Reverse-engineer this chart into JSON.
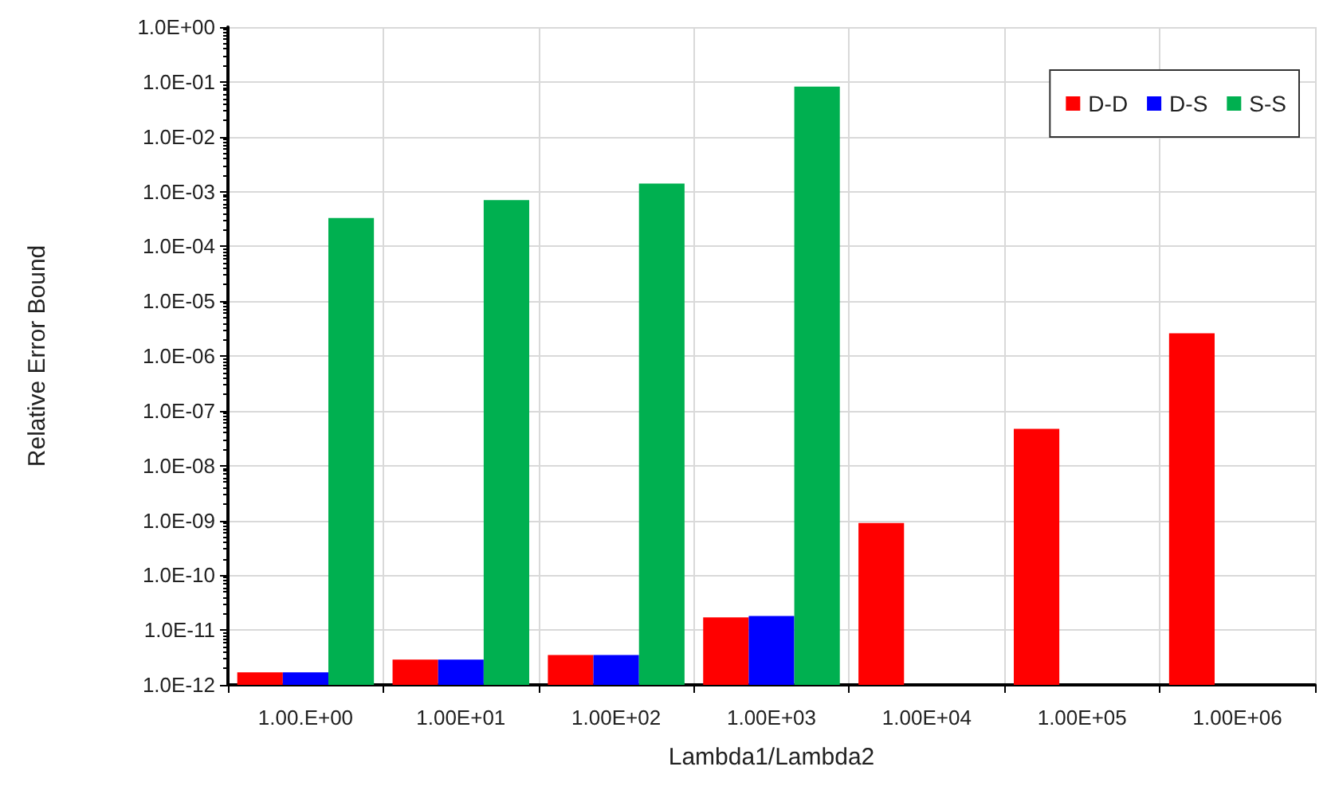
{
  "chart_data": {
    "type": "bar",
    "xlabel": "Lambda1/Lambda2",
    "ylabel": "Relative Error Bound",
    "categories": [
      "1.00.E+00",
      "1.00E+01",
      "1.00E+02",
      "1.00E+03",
      "1.00E+04",
      "1.00E+05",
      "1.00E+06"
    ],
    "series": [
      {
        "name": "D-D",
        "color": "#ff0000",
        "values": [
          1.7e-12,
          2.9e-12,
          3.5e-12,
          1.7e-11,
          9e-10,
          4.7e-08,
          2.6e-06
        ]
      },
      {
        "name": "D-S",
        "color": "#0000ff",
        "values": [
          1.7e-12,
          2.9e-12,
          3.5e-12,
          1.8e-11,
          null,
          null,
          null
        ]
      },
      {
        "name": "S-S",
        "color": "#00b050",
        "values": [
          0.00033,
          0.0007,
          0.0014,
          0.082,
          null,
          null,
          null
        ]
      }
    ],
    "log": true,
    "ylim": [
      1e-12,
      1
    ],
    "yticks": [
      {
        "value": 1e-12,
        "label": "1.0E-12"
      },
      {
        "value": 1e-11,
        "label": "1.0E-11"
      },
      {
        "value": 1e-10,
        "label": "1.0E-10"
      },
      {
        "value": 1e-09,
        "label": "1.0E-09"
      },
      {
        "value": 1e-08,
        "label": "1.0E-08"
      },
      {
        "value": 1e-07,
        "label": "1.0E-07"
      },
      {
        "value": 1e-06,
        "label": "1.0E-06"
      },
      {
        "value": 1e-05,
        "label": "1.0E-05"
      },
      {
        "value": 0.0001,
        "label": "1.0E-04"
      },
      {
        "value": 0.001,
        "label": "1.0E-03"
      },
      {
        "value": 0.01,
        "label": "1.0E-02"
      },
      {
        "value": 0.1,
        "label": "1.0E-01"
      },
      {
        "value": 1,
        "label": "1.0E+00"
      }
    ],
    "grid": true,
    "legend": "top right"
  }
}
